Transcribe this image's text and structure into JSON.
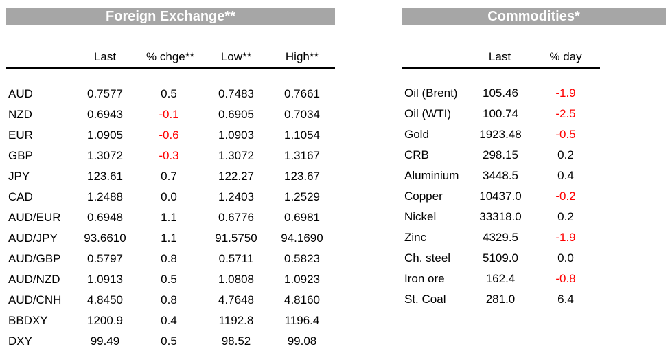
{
  "fx": {
    "title": "Foreign Exchange**",
    "headers": [
      "Last",
      "% chge**",
      "Low**",
      "High**"
    ],
    "rows": [
      {
        "name": "AUD",
        "last": "0.7577",
        "chg": "0.5",
        "low": "0.7483",
        "high": "0.7661"
      },
      {
        "name": "NZD",
        "last": "0.6943",
        "chg": "-0.1",
        "low": "0.6905",
        "high": "0.7034"
      },
      {
        "name": "EUR",
        "last": "1.0905",
        "chg": "-0.6",
        "low": "1.0903",
        "high": "1.1054"
      },
      {
        "name": "GBP",
        "last": "1.3072",
        "chg": "-0.3",
        "low": "1.3072",
        "high": "1.3167"
      },
      {
        "name": "JPY",
        "last": "123.61",
        "chg": "0.7",
        "low": "122.27",
        "high": "123.67"
      },
      {
        "name": "CAD",
        "last": "1.2488",
        "chg": "0.0",
        "low": "1.2403",
        "high": "1.2529"
      },
      {
        "name": "AUD/EUR",
        "last": "0.6948",
        "chg": "1.1",
        "low": "0.6776",
        "high": "0.6981"
      },
      {
        "name": "AUD/JPY",
        "last": "93.6610",
        "chg": "1.1",
        "low": "91.5750",
        "high": "94.1690"
      },
      {
        "name": "AUD/GBP",
        "last": "0.5797",
        "chg": "0.8",
        "low": "0.5711",
        "high": "0.5823"
      },
      {
        "name": "AUD/NZD",
        "last": "1.0913",
        "chg": "0.5",
        "low": "1.0808",
        "high": "1.0923"
      },
      {
        "name": "AUD/CNH",
        "last": "4.8450",
        "chg": "0.8",
        "low": "4.7648",
        "high": "4.8160"
      },
      {
        "name": "BBDXY",
        "last": "1200.9",
        "chg": "0.4",
        "low": "1192.8",
        "high": "1196.4"
      },
      {
        "name": "DXY",
        "last": "99.49",
        "chg": "0.5",
        "low": "98.52",
        "high": "99.08"
      }
    ]
  },
  "commodities": {
    "title": "Commodities*",
    "headers": [
      "Last",
      "% day"
    ],
    "rows": [
      {
        "name": "Oil (Brent)",
        "last": "105.46",
        "day": "-1.9"
      },
      {
        "name": "Oil (WTI)",
        "last": "100.74",
        "day": "-2.5"
      },
      {
        "name": "Gold",
        "last": "1923.48",
        "day": "-0.5"
      },
      {
        "name": "CRB",
        "last": "298.15",
        "day": "0.2"
      },
      {
        "name": "Aluminium",
        "last": "3448.5",
        "day": "0.4"
      },
      {
        "name": "Copper",
        "last": "10437.0",
        "day": "-0.2"
      },
      {
        "name": "Nickel",
        "last": "33318.0",
        "day": "0.2"
      },
      {
        "name": "Zinc",
        "last": "4329.5",
        "day": "-1.9"
      },
      {
        "name": "Ch. steel",
        "last": "5109.0",
        "day": "0.0"
      },
      {
        "name": "Iron ore",
        "last": "162.4",
        "day": "-0.8"
      },
      {
        "name": "St. Coal",
        "last": "281.0",
        "day": "6.4"
      }
    ]
  },
  "colors": {
    "header_bar": "#a6a6a6",
    "negative": "#ff0000",
    "text": "#000000"
  }
}
